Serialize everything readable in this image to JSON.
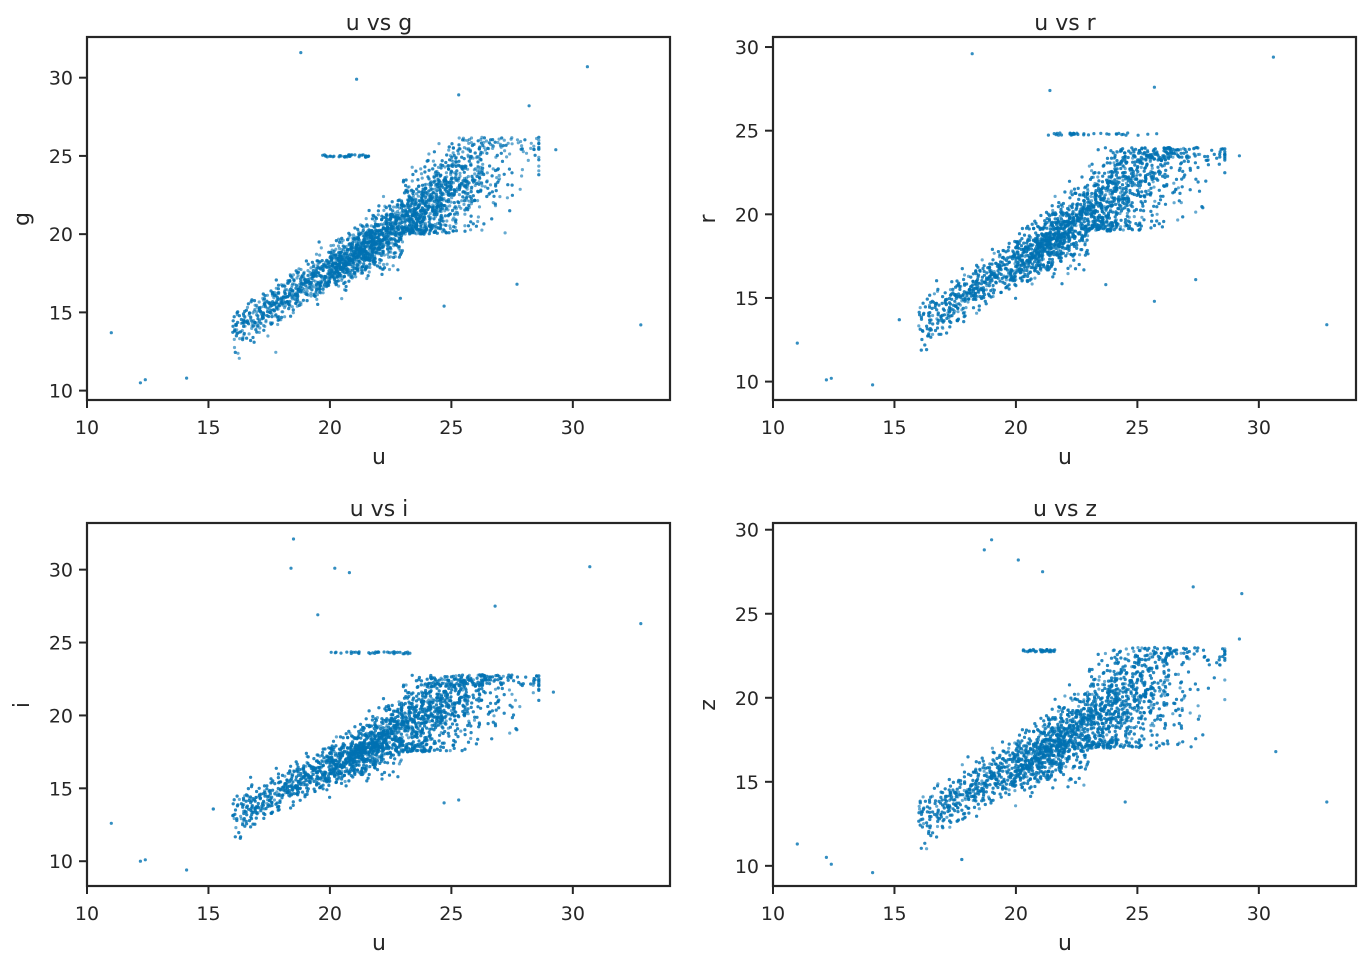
{
  "figure": {
    "point_color": "#0072b2",
    "axis_color": "#262626"
  },
  "chart_data": [
    {
      "type": "scatter",
      "title": "u vs g",
      "xlabel": "u",
      "ylabel": "g",
      "xlim": [
        10,
        34
      ],
      "ylim": [
        9.4,
        32.6
      ],
      "xticks": [
        10,
        15,
        20,
        25,
        30
      ],
      "yticks": [
        10,
        15,
        20,
        25,
        30
      ],
      "grid": false,
      "cloud": {
        "slope": 1.0,
        "intercept": -2.3,
        "spread": 0.9,
        "upper_cap": 26.2,
        "lower_cap": 20.0
      },
      "notable_points": [
        {
          "x": 18.8,
          "y": 31.6
        },
        {
          "x": 21.1,
          "y": 29.9
        },
        {
          "x": 30.6,
          "y": 30.7
        },
        {
          "x": 25.3,
          "y": 28.9
        },
        {
          "x": 32.8,
          "y": 14.2
        },
        {
          "x": 11.0,
          "y": 13.7
        },
        {
          "x": 12.2,
          "y": 10.5
        },
        {
          "x": 12.4,
          "y": 10.7
        },
        {
          "x": 14.1,
          "y": 10.8
        },
        {
          "x": 28.2,
          "y": 28.2
        },
        {
          "x": 29.3,
          "y": 25.4
        },
        {
          "x": 27.7,
          "y": 16.8
        },
        {
          "x": 24.7,
          "y": 15.4
        },
        {
          "x": 22.9,
          "y": 15.9
        }
      ],
      "streak": {
        "x_from": 19.7,
        "x_to": 21.6,
        "y": 25.0
      }
    },
    {
      "type": "scatter",
      "title": "u vs r",
      "xlabel": "u",
      "ylabel": "r",
      "xlim": [
        10,
        34
      ],
      "ylim": [
        8.9,
        30.6
      ],
      "xticks": [
        10,
        15,
        20,
        25,
        30
      ],
      "yticks": [
        10,
        15,
        20,
        25,
        30
      ],
      "grid": false,
      "cloud": {
        "slope": 0.95,
        "intercept": -1.9,
        "spread": 1.0,
        "upper_cap": 24.0,
        "lower_cap": 19.0
      },
      "notable_points": [
        {
          "x": 18.2,
          "y": 29.6
        },
        {
          "x": 30.6,
          "y": 29.4
        },
        {
          "x": 25.7,
          "y": 27.6
        },
        {
          "x": 21.4,
          "y": 27.4
        },
        {
          "x": 32.8,
          "y": 13.4
        },
        {
          "x": 11.0,
          "y": 12.3
        },
        {
          "x": 12.2,
          "y": 10.1
        },
        {
          "x": 12.4,
          "y": 10.2
        },
        {
          "x": 14.1,
          "y": 9.8
        },
        {
          "x": 29.2,
          "y": 23.5
        },
        {
          "x": 27.4,
          "y": 16.1
        },
        {
          "x": 25.7,
          "y": 14.8
        },
        {
          "x": 23.7,
          "y": 15.8
        }
      ],
      "streak": {
        "x_from": 21.2,
        "x_to": 26.1,
        "y": 24.8
      }
    },
    {
      "type": "scatter",
      "title": "u vs i",
      "xlabel": "u",
      "ylabel": "i",
      "xlim": [
        10,
        34
      ],
      "ylim": [
        8.3,
        33.2
      ],
      "xticks": [
        10,
        15,
        20,
        25,
        30
      ],
      "yticks": [
        10,
        15,
        20,
        25,
        30
      ],
      "grid": false,
      "cloud": {
        "slope": 0.85,
        "intercept": -0.5,
        "spread": 1.0,
        "upper_cap": 22.8,
        "lower_cap": 17.5
      },
      "notable_points": [
        {
          "x": 18.5,
          "y": 32.1
        },
        {
          "x": 18.4,
          "y": 30.1
        },
        {
          "x": 20.2,
          "y": 30.1
        },
        {
          "x": 20.8,
          "y": 29.8
        },
        {
          "x": 30.7,
          "y": 30.2
        },
        {
          "x": 32.8,
          "y": 26.3
        },
        {
          "x": 26.8,
          "y": 27.5
        },
        {
          "x": 11.0,
          "y": 12.6
        },
        {
          "x": 12.2,
          "y": 10.0
        },
        {
          "x": 12.4,
          "y": 10.1
        },
        {
          "x": 14.1,
          "y": 9.4
        },
        {
          "x": 29.2,
          "y": 21.6
        },
        {
          "x": 24.7,
          "y": 14.0
        },
        {
          "x": 25.3,
          "y": 14.2
        },
        {
          "x": 19.5,
          "y": 26.9
        }
      ],
      "streak": {
        "x_from": 20.0,
        "x_to": 23.3,
        "y": 24.3
      }
    },
    {
      "type": "scatter",
      "title": "u vs z",
      "xlabel": "u",
      "ylabel": "z",
      "xlim": [
        10,
        34
      ],
      "ylim": [
        8.8,
        30.4
      ],
      "xticks": [
        10,
        15,
        20,
        25,
        30
      ],
      "yticks": [
        10,
        15,
        20,
        25,
        30
      ],
      "grid": false,
      "cloud": {
        "slope": 0.82,
        "intercept": -0.5,
        "spread": 1.1,
        "upper_cap": 23.0,
        "lower_cap": 17.0
      },
      "notable_points": [
        {
          "x": 19.0,
          "y": 29.4
        },
        {
          "x": 18.7,
          "y": 28.8
        },
        {
          "x": 20.1,
          "y": 28.2
        },
        {
          "x": 21.1,
          "y": 27.5
        },
        {
          "x": 27.3,
          "y": 26.6
        },
        {
          "x": 29.3,
          "y": 26.2
        },
        {
          "x": 32.8,
          "y": 13.8
        },
        {
          "x": 30.7,
          "y": 16.8
        },
        {
          "x": 11.0,
          "y": 11.3
        },
        {
          "x": 12.2,
          "y": 10.5
        },
        {
          "x": 12.4,
          "y": 10.1
        },
        {
          "x": 14.1,
          "y": 9.6
        },
        {
          "x": 29.2,
          "y": 23.5
        },
        {
          "x": 24.5,
          "y": 13.8
        }
      ],
      "streak": {
        "x_from": 20.3,
        "x_to": 21.7,
        "y": 22.8
      }
    }
  ]
}
